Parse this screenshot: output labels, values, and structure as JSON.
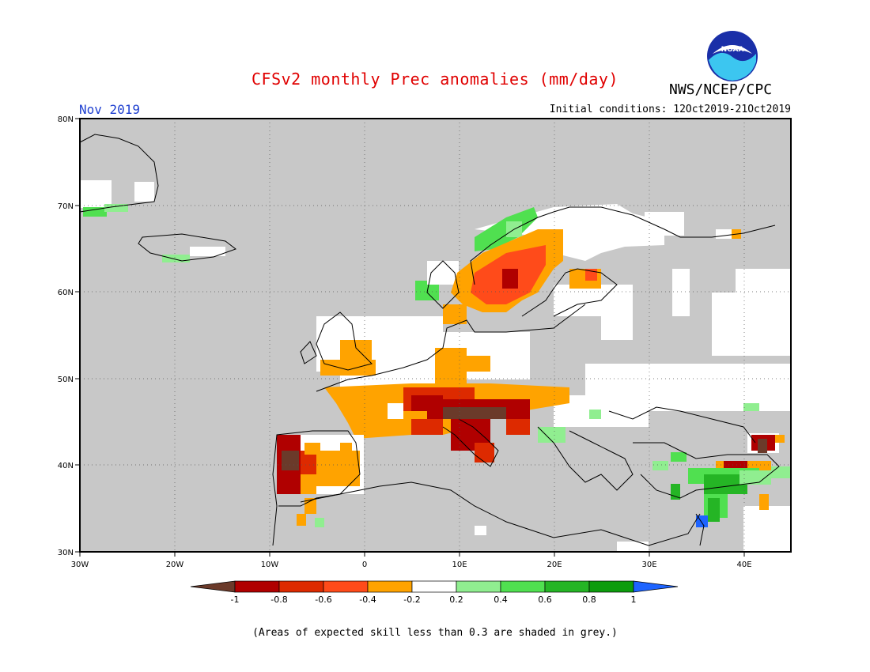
{
  "header": {
    "title": "CFSv2 monthly Prec anomalies (mm/day)",
    "org": "NWS/NCEP/CPC",
    "month": "Nov 2019",
    "initial_conditions": "Initial conditions: 12Oct2019-21Oct2019",
    "logo_text": "NOAA"
  },
  "map": {
    "lon_labels": [
      "30W",
      "20W",
      "10W",
      "0",
      "10E",
      "20E",
      "30E",
      "40E"
    ],
    "lat_labels": [
      "80N",
      "70N",
      "60N",
      "50N",
      "40N",
      "30N"
    ],
    "colors": {
      "land_grey": "#c8c8c8",
      "ocean": "#c8c8c8",
      "no_signal": "#ffffff",
      "frame": "#000000"
    }
  },
  "legend": {
    "labels": [
      "-1",
      "-0.8",
      "-0.6",
      "-0.4",
      "-0.2",
      "0.2",
      "0.4",
      "0.6",
      "0.8",
      "1"
    ],
    "colors": [
      "#6b3a2a",
      "#b00000",
      "#dd2a00",
      "#ff4b1a",
      "#ffa300",
      "#ffffff",
      "#90ee90",
      "#50e050",
      "#25b525",
      "#0c9c0c",
      "#1e64ff"
    ]
  },
  "caption": "(Areas of expected skill less than 0.3 are shaded in grey.)"
}
